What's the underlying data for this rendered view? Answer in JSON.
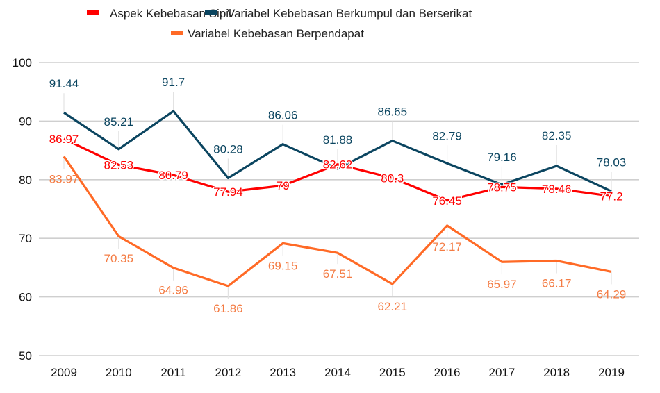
{
  "chart_data": {
    "type": "line",
    "title": "",
    "xlabel": "",
    "ylabel": "",
    "categories": [
      "2009",
      "2010",
      "2011",
      "2012",
      "2013",
      "2014",
      "2015",
      "2016",
      "2017",
      "2018",
      "2019"
    ],
    "ylim": [
      50,
      100
    ],
    "yticks": [
      50,
      60,
      70,
      80,
      90,
      100
    ],
    "grid": true,
    "legend_position": "top",
    "series": [
      {
        "name": "Aspek Kebebasan Sipil",
        "color": "#ff0000",
        "values": [
          86.97,
          82.53,
          80.79,
          77.94,
          79,
          82.62,
          80.3,
          76.45,
          78.75,
          78.46,
          77.2
        ],
        "labels": [
          "86.97",
          "82.53",
          "80.79",
          "77.94",
          "79",
          "82.62",
          "80.3",
          "76.45",
          "78.75",
          "78.46",
          "77.2"
        ]
      },
      {
        "name": "Variabel Kebebasan Berkumpul dan Berserikat",
        "color": "#0b4560",
        "values": [
          91.44,
          85.21,
          91.7,
          80.28,
          86.06,
          81.88,
          86.65,
          82.79,
          79.16,
          82.35,
          78.03
        ],
        "labels": [
          "91.44",
          "85.21",
          "91.7",
          "80.28",
          "86.06",
          "81.88",
          "86.65",
          "82.79",
          "79.16",
          "82.35",
          "78.03"
        ]
      },
      {
        "name": "Variabel Kebebasan Berpendapat",
        "color": "#ff6a26",
        "label_color": "#f47c44",
        "values": [
          83.97,
          70.35,
          64.96,
          61.86,
          69.15,
          67.51,
          62.21,
          72.17,
          65.97,
          66.17,
          64.29
        ],
        "labels": [
          "83.97",
          "70.35",
          "64.96",
          "61.86",
          "69.15",
          "67.51",
          "62.21",
          "72.17",
          "65.97",
          "66.17",
          "64.29"
        ]
      }
    ]
  }
}
